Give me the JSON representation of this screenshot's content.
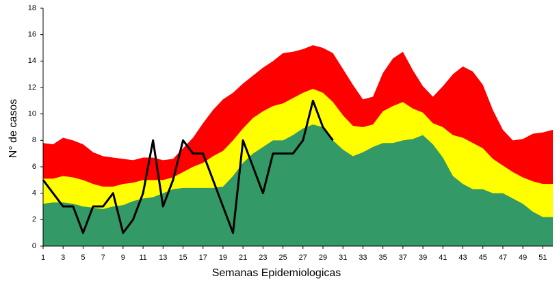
{
  "chart_data": {
    "type": "area",
    "x_label": "Semanas Epidemiologicas",
    "y_label": "N° de casos",
    "x": [
      1,
      2,
      3,
      4,
      5,
      6,
      7,
      8,
      9,
      10,
      11,
      12,
      13,
      14,
      15,
      16,
      17,
      18,
      19,
      20,
      21,
      22,
      23,
      24,
      25,
      26,
      27,
      28,
      29,
      30,
      31,
      32,
      33,
      34,
      35,
      36,
      37,
      38,
      39,
      40,
      41,
      42,
      43,
      44,
      45,
      46,
      47,
      48,
      49,
      50,
      51,
      52
    ],
    "xlim": [
      1,
      52
    ],
    "xticks": [
      1,
      3,
      5,
      7,
      9,
      11,
      13,
      15,
      17,
      19,
      21,
      23,
      25,
      27,
      29,
      31,
      33,
      35,
      37,
      39,
      41,
      43,
      45,
      47,
      49,
      51
    ],
    "ylim": [
      0,
      18
    ],
    "yticks": [
      0,
      2,
      4,
      6,
      8,
      10,
      12,
      14,
      16,
      18
    ],
    "series": [
      {
        "type": "area",
        "color": "#ff0000",
        "values": [
          7.8,
          7.7,
          8.2,
          8.0,
          7.7,
          7.1,
          6.8,
          6.7,
          6.6,
          6.5,
          6.7,
          6.7,
          6.5,
          6.6,
          7.4,
          8.2,
          9.3,
          10.3,
          11.1,
          11.6,
          12.3,
          12.9,
          13.5,
          14.0,
          14.6,
          14.7,
          14.9,
          15.2,
          15.0,
          14.6,
          13.4,
          12.2,
          11.1,
          11.3,
          13.1,
          14.2,
          14.7,
          13.3,
          12.1,
          11.3,
          12.1,
          13.0,
          13.6,
          13.2,
          12.2,
          10.3,
          8.8,
          8.0,
          8.1,
          8.5,
          8.6,
          8.8
        ]
      },
      {
        "type": "area",
        "color": "#ffff00",
        "values": [
          5.1,
          5.1,
          5.3,
          5.2,
          5.0,
          4.7,
          4.5,
          4.5,
          4.7,
          4.8,
          5.0,
          5.0,
          5.0,
          5.2,
          5.6,
          6.0,
          6.3,
          6.8,
          7.2,
          8.0,
          8.9,
          9.7,
          10.2,
          10.6,
          10.8,
          11.2,
          11.6,
          11.9,
          11.6,
          10.9,
          9.9,
          9.1,
          9.0,
          9.2,
          10.2,
          10.6,
          10.9,
          10.4,
          10.1,
          9.3,
          9.0,
          8.4,
          8.2,
          7.8,
          7.4,
          6.6,
          6.1,
          5.6,
          5.2,
          4.9,
          4.7,
          4.7
        ]
      },
      {
        "type": "area",
        "color": "#339966",
        "values": [
          3.2,
          3.3,
          3.3,
          3.2,
          3.0,
          2.9,
          2.8,
          3.0,
          3.1,
          3.4,
          3.6,
          3.7,
          4.0,
          4.3,
          4.4,
          4.4,
          4.4,
          4.4,
          4.5,
          5.3,
          6.3,
          7.0,
          7.5,
          8.0,
          8.0,
          8.4,
          8.9,
          9.2,
          9.0,
          8.0,
          7.3,
          6.8,
          7.1,
          7.5,
          7.8,
          7.8,
          8.0,
          8.1,
          8.4,
          7.7,
          6.7,
          5.3,
          4.7,
          4.3,
          4.3,
          4.0,
          4.0,
          3.6,
          3.2,
          2.6,
          2.2,
          2.2
        ]
      },
      {
        "type": "line",
        "color": "#000000",
        "values": [
          5,
          4,
          3,
          3,
          1,
          3,
          3,
          4,
          1,
          2,
          4,
          8,
          3,
          5,
          8,
          7,
          7,
          5,
          3,
          1,
          8,
          6,
          4,
          7,
          7,
          7,
          8,
          11,
          9,
          8,
          null,
          null,
          null,
          null,
          null,
          null,
          null,
          null,
          null,
          null,
          null,
          null,
          null,
          null,
          null,
          null,
          null,
          null,
          null,
          null,
          null,
          null
        ]
      }
    ]
  }
}
